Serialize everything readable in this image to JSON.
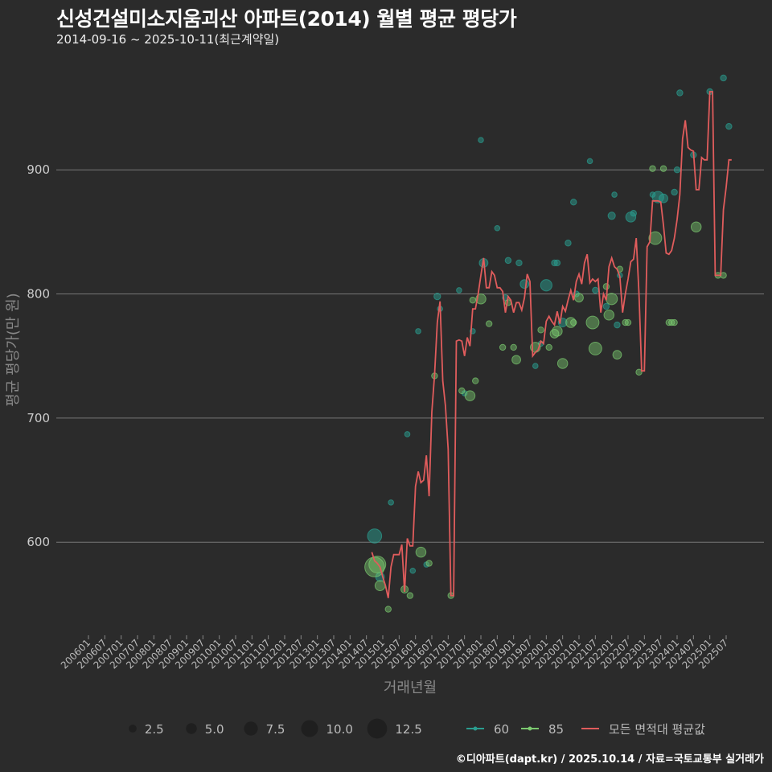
{
  "title": "신성건설미소지움괴산 아파트(2014) 월별 평균 평당가",
  "subtitle": "2014-09-16 ~ 2025-10-11(최근계약일)",
  "caption": "©디아파트(dapt.kr) / 2025.10.14 / 자료=국토교통부 실거래가",
  "chart_data": {
    "type": "line",
    "xlabel": "거래년월",
    "ylabel": "평균 평당가(만 원)",
    "ylim": [
      525,
      985
    ],
    "yticks": [
      600,
      700,
      800,
      900
    ],
    "grid": true,
    "legend_position": "bottom",
    "colors": {
      "60": "#2a9d8f",
      "85": "#7bc96f",
      "avg": "#e05c5c"
    },
    "x_tick_labels": [
      "200601",
      "200607",
      "200701",
      "200707",
      "200801",
      "200807",
      "200901",
      "200907",
      "201001",
      "201007",
      "201101",
      "201107",
      "201201",
      "201207",
      "201301",
      "201307",
      "201401",
      "201407",
      "201501",
      "201507",
      "201601",
      "201607",
      "201701",
      "201707",
      "201801",
      "201807",
      "201901",
      "201907",
      "202001",
      "202007",
      "202101",
      "202107",
      "202201",
      "202207",
      "202301",
      "202307",
      "202401",
      "202407",
      "202501",
      "202507"
    ],
    "size_legend": [
      2.5,
      5.0,
      7.5,
      10.0,
      12.5
    ],
    "series_legend": [
      "60",
      "85",
      "모든 면적대 평균값"
    ],
    "avg_line": {
      "name": "모든 면적대 평균값",
      "points": [
        [
          "2014-09",
          592
        ],
        [
          "2014-10",
          585
        ],
        [
          "2014-11",
          583
        ],
        [
          "2014-12",
          580
        ],
        [
          "2015-01",
          572
        ],
        [
          "2015-02",
          565
        ],
        [
          "2015-03",
          555
        ],
        [
          "2015-04",
          580
        ],
        [
          "2015-05",
          590
        ],
        [
          "2015-06",
          590
        ],
        [
          "2015-07",
          590
        ],
        [
          "2015-08",
          598
        ],
        [
          "2015-09",
          560
        ],
        [
          "2015-10",
          603
        ],
        [
          "2015-11",
          597
        ],
        [
          "2015-12",
          597
        ],
        [
          "2016-01",
          645
        ],
        [
          "2016-02",
          657
        ],
        [
          "2016-03",
          648
        ],
        [
          "2016-04",
          650
        ],
        [
          "2016-05",
          670
        ],
        [
          "2016-06",
          637
        ],
        [
          "2016-07",
          705
        ],
        [
          "2016-08",
          735
        ],
        [
          "2016-09",
          777
        ],
        [
          "2016-10",
          794
        ],
        [
          "2016-11",
          730
        ],
        [
          "2016-12",
          710
        ],
        [
          "2017-01",
          675
        ],
        [
          "2017-02",
          557
        ],
        [
          "2017-03",
          557
        ],
        [
          "2017-04",
          762
        ],
        [
          "2017-05",
          763
        ],
        [
          "2017-06",
          762
        ],
        [
          "2017-07",
          750
        ],
        [
          "2017-08",
          765
        ],
        [
          "2017-09",
          758
        ],
        [
          "2017-10",
          788
        ],
        [
          "2017-11",
          788
        ],
        [
          "2017-12",
          800
        ],
        [
          "2018-01",
          815
        ],
        [
          "2018-02",
          829
        ],
        [
          "2018-03",
          805
        ],
        [
          "2018-04",
          805
        ],
        [
          "2018-05",
          818
        ],
        [
          "2018-06",
          815
        ],
        [
          "2018-07",
          805
        ],
        [
          "2018-08",
          805
        ],
        [
          "2018-09",
          802
        ],
        [
          "2018-10",
          785
        ],
        [
          "2018-11",
          798
        ],
        [
          "2018-12",
          795
        ],
        [
          "2019-01",
          785
        ],
        [
          "2019-02",
          793
        ],
        [
          "2019-03",
          793
        ],
        [
          "2019-04",
          787
        ],
        [
          "2019-05",
          797
        ],
        [
          "2019-06",
          816
        ],
        [
          "2019-07",
          810
        ],
        [
          "2019-08",
          750
        ],
        [
          "2019-09",
          753
        ],
        [
          "2019-10",
          755
        ],
        [
          "2019-11",
          762
        ],
        [
          "2019-12",
          760
        ],
        [
          "2020-01",
          778
        ],
        [
          "2020-02",
          782
        ],
        [
          "2020-03",
          778
        ],
        [
          "2020-04",
          775
        ],
        [
          "2020-05",
          786
        ],
        [
          "2020-06",
          776
        ],
        [
          "2020-07",
          790
        ],
        [
          "2020-08",
          786
        ],
        [
          "2020-09",
          795
        ],
        [
          "2020-10",
          803
        ],
        [
          "2020-11",
          795
        ],
        [
          "2020-12",
          810
        ],
        [
          "2021-01",
          816
        ],
        [
          "2021-02",
          808
        ],
        [
          "2021-03",
          825
        ],
        [
          "2021-04",
          832
        ],
        [
          "2021-05",
          809
        ],
        [
          "2021-06",
          812
        ],
        [
          "2021-07",
          810
        ],
        [
          "2021-08",
          812
        ],
        [
          "2021-09",
          785
        ],
        [
          "2021-10",
          800
        ],
        [
          "2021-11",
          795
        ],
        [
          "2021-12",
          822
        ],
        [
          "2022-01",
          829
        ],
        [
          "2022-02",
          822
        ],
        [
          "2022-03",
          820
        ],
        [
          "2022-04",
          814
        ],
        [
          "2022-05",
          785
        ],
        [
          "2022-06",
          800
        ],
        [
          "2022-07",
          812
        ],
        [
          "2022-08",
          826
        ],
        [
          "2022-09",
          828
        ],
        [
          "2022-10",
          845
        ],
        [
          "2022-11",
          800
        ],
        [
          "2022-12",
          738
        ],
        [
          "2023-01",
          738
        ],
        [
          "2023-02",
          838
        ],
        [
          "2023-03",
          842
        ],
        [
          "2023-04",
          875
        ],
        [
          "2023-05",
          875
        ],
        [
          "2023-06",
          875
        ],
        [
          "2023-07",
          874
        ],
        [
          "2023-08",
          855
        ],
        [
          "2023-09",
          833
        ],
        [
          "2023-10",
          832
        ],
        [
          "2023-11",
          835
        ],
        [
          "2023-12",
          845
        ],
        [
          "2024-01",
          860
        ],
        [
          "2024-02",
          880
        ],
        [
          "2024-03",
          925
        ],
        [
          "2024-04",
          940
        ],
        [
          "2024-05",
          918
        ],
        [
          "2024-06",
          916
        ],
        [
          "2024-07",
          915
        ],
        [
          "2024-08",
          884
        ],
        [
          "2024-09",
          884
        ],
        [
          "2024-10",
          910
        ],
        [
          "2024-11",
          908
        ],
        [
          "2024-12",
          908
        ],
        [
          "2025-01",
          963
        ],
        [
          "2025-02",
          963
        ],
        [
          "2025-03",
          815
        ],
        [
          "2025-04",
          815
        ],
        [
          "2025-05",
          815
        ],
        [
          "2025-06",
          868
        ],
        [
          "2025-07",
          886
        ],
        [
          "2025-08",
          908
        ],
        [
          "2025-09",
          908
        ]
      ]
    },
    "points_60": [
      [
        "2014-10",
        605,
        8
      ],
      [
        "2014-12",
        572,
        4
      ],
      [
        "2015-04",
        632,
        1.5
      ],
      [
        "2015-10",
        687,
        1.5
      ],
      [
        "2015-12",
        577,
        1.5
      ],
      [
        "2016-02",
        770,
        1.5
      ],
      [
        "2016-05",
        582,
        1.5
      ],
      [
        "2016-09",
        798,
        2.5
      ],
      [
        "2016-10",
        788,
        1.5
      ],
      [
        "2017-05",
        803,
        1.5
      ],
      [
        "2017-07",
        720,
        1.5
      ],
      [
        "2017-10",
        770,
        1.5
      ],
      [
        "2018-01",
        924,
        1.5
      ],
      [
        "2018-02",
        825,
        4
      ],
      [
        "2018-07",
        853,
        1.5
      ],
      [
        "2018-10",
        797,
        2
      ],
      [
        "2018-11",
        827,
        2
      ],
      [
        "2019-03",
        825,
        2
      ],
      [
        "2019-05",
        808,
        4
      ],
      [
        "2019-09",
        742,
        1.5
      ],
      [
        "2019-11",
        760,
        1.5
      ],
      [
        "2020-01",
        807,
        6
      ],
      [
        "2020-04",
        825,
        2
      ],
      [
        "2020-05",
        825,
        2
      ],
      [
        "2020-07",
        777,
        4
      ],
      [
        "2020-09",
        841,
        2
      ],
      [
        "2020-11",
        874,
        2
      ],
      [
        "2020-12",
        800,
        2
      ],
      [
        "2021-05",
        907,
        1.5
      ],
      [
        "2021-07",
        803,
        2
      ],
      [
        "2021-11",
        790,
        2
      ],
      [
        "2022-01",
        863,
        3
      ],
      [
        "2022-02",
        880,
        1.5
      ],
      [
        "2022-03",
        775,
        2
      ],
      [
        "2022-04",
        815,
        1.5
      ],
      [
        "2022-08",
        862,
        5
      ],
      [
        "2022-09",
        865,
        2
      ],
      [
        "2023-04",
        880,
        1.5
      ],
      [
        "2023-06",
        878,
        6
      ],
      [
        "2023-08",
        877,
        4
      ],
      [
        "2023-12",
        882,
        2
      ],
      [
        "2024-01",
        900,
        2
      ],
      [
        "2024-02",
        962,
        2
      ],
      [
        "2024-07",
        912,
        2
      ],
      [
        "2025-01",
        963,
        2
      ],
      [
        "2025-06",
        974,
        2
      ],
      [
        "2025-08",
        935,
        2
      ]
    ],
    "points_85": [
      [
        "2014-10",
        580,
        12
      ],
      [
        "2014-11",
        582,
        10
      ],
      [
        "2014-12",
        565,
        5
      ],
      [
        "2015-03",
        546,
        2
      ],
      [
        "2015-09",
        562,
        3
      ],
      [
        "2015-11",
        557,
        2
      ],
      [
        "2016-03",
        592,
        5
      ],
      [
        "2016-06",
        583,
        2
      ],
      [
        "2016-08",
        734,
        2
      ],
      [
        "2017-02",
        557,
        2
      ],
      [
        "2017-06",
        722,
        2
      ],
      [
        "2017-09",
        718,
        5
      ],
      [
        "2017-10",
        795,
        2
      ],
      [
        "2017-11",
        730,
        2
      ],
      [
        "2018-01",
        796,
        5
      ],
      [
        "2018-04",
        776,
        2
      ],
      [
        "2018-09",
        757,
        2
      ],
      [
        "2018-11",
        793,
        2
      ],
      [
        "2019-01",
        757,
        2
      ],
      [
        "2019-02",
        747,
        4
      ],
      [
        "2019-09",
        757,
        5
      ],
      [
        "2019-11",
        771,
        2
      ],
      [
        "2020-02",
        757,
        2
      ],
      [
        "2020-04",
        768,
        4
      ],
      [
        "2020-05",
        770,
        5
      ],
      [
        "2020-07",
        744,
        5
      ],
      [
        "2020-10",
        777,
        5
      ],
      [
        "2020-11",
        777,
        2
      ],
      [
        "2021-01",
        797,
        4
      ],
      [
        "2021-06",
        777,
        7
      ],
      [
        "2021-07",
        756,
        7
      ],
      [
        "2021-11",
        806,
        2
      ],
      [
        "2021-12",
        783,
        5
      ],
      [
        "2022-01",
        796,
        6
      ],
      [
        "2022-03",
        751,
        4
      ],
      [
        "2022-04",
        820,
        2
      ],
      [
        "2022-06",
        777,
        2
      ],
      [
        "2022-07",
        777,
        2
      ],
      [
        "2022-11",
        737,
        2
      ],
      [
        "2023-04",
        901,
        2
      ],
      [
        "2023-05",
        845,
        7
      ],
      [
        "2023-08",
        901,
        2
      ],
      [
        "2023-10",
        777,
        2
      ],
      [
        "2023-11",
        777,
        2
      ],
      [
        "2023-12",
        777,
        2
      ],
      [
        "2024-08",
        854,
        5
      ],
      [
        "2025-04",
        815,
        2
      ],
      [
        "2025-06",
        815,
        2
      ]
    ]
  }
}
